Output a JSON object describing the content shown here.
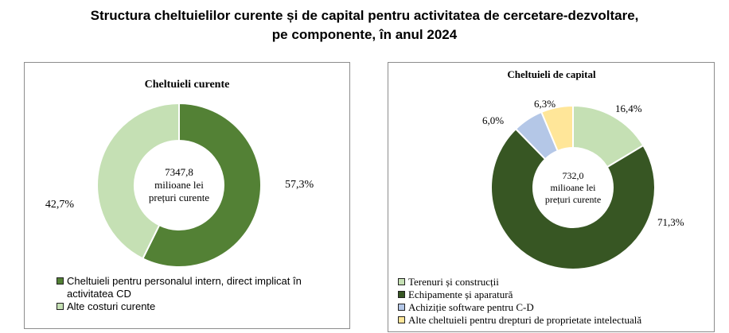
{
  "title_line1": "Structura cheltuielilor curente și de capital pentru activitatea de cercetare-dezvoltare,",
  "title_line2": "pe componente, în anul 2024",
  "chart_data": [
    {
      "type": "pie",
      "title": "Cheltuieli curente",
      "center_text": [
        "7347,8",
        "milioane lei",
        "prețuri curente"
      ],
      "series": [
        {
          "name": "Cheltuieli pentru personalul intern, direct implicat în activitatea CD",
          "value": 57.3,
          "label": "57,3%",
          "color": "#538135"
        },
        {
          "name": "Alte costuri curente",
          "value": 42.7,
          "label": "42,7%",
          "color": "#c5e0b4"
        }
      ],
      "legend_position": "bottom"
    },
    {
      "type": "pie",
      "title": "Cheltuieli de capital",
      "center_text": [
        "732,0",
        "milioane lei",
        "prețuri curente"
      ],
      "series": [
        {
          "name": "Terenuri și construcții",
          "value": 16.4,
          "label": "16,4%",
          "color": "#c5e0b4"
        },
        {
          "name": "Echipamente și aparatură",
          "value": 71.3,
          "label": "71,3%",
          "color": "#375623"
        },
        {
          "name": "Achiziție software pentru C-D",
          "value": 6.0,
          "label": "6,0%",
          "color": "#b4c7e7"
        },
        {
          "name": "Alte cheltuieli pentru drepturi de proprietate intelectuală",
          "value": 6.3,
          "label": "6,3%",
          "color": "#ffe699"
        }
      ],
      "legend_position": "bottom"
    }
  ]
}
